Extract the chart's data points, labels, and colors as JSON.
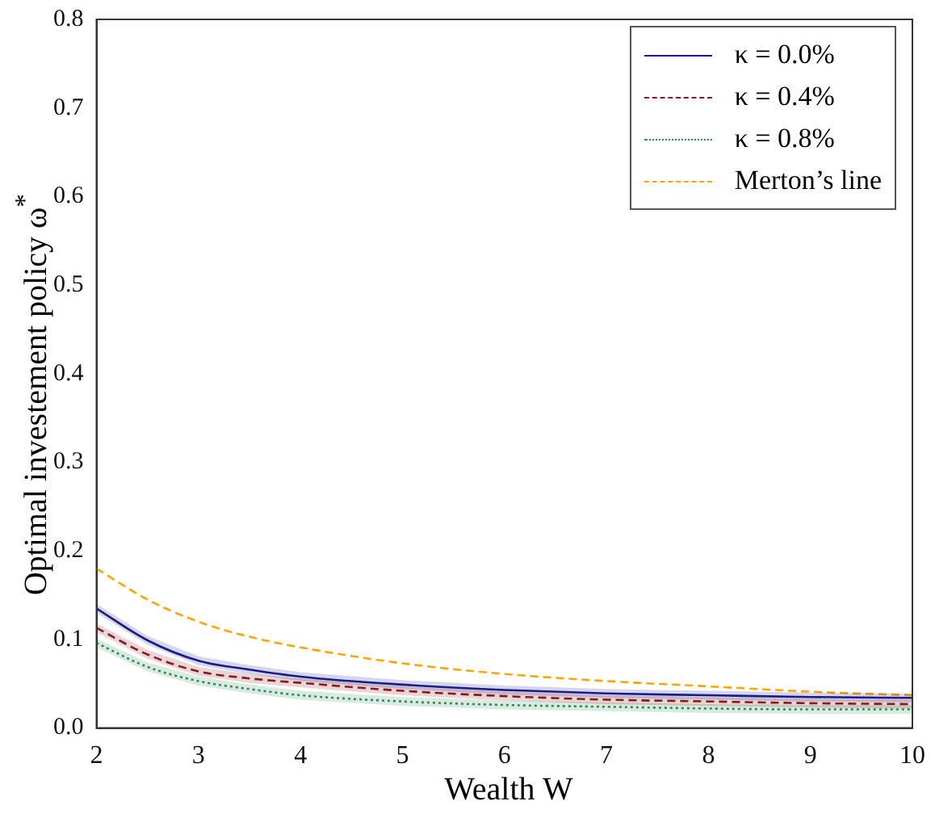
{
  "chart_data": {
    "type": "line",
    "xlabel": "Wealth W",
    "ylabel": "Optimal investement policy ω$^{*}$",
    "x": [
      2,
      2.5,
      3,
      3.5,
      4,
      5,
      6,
      7,
      8,
      9,
      10
    ],
    "series": [
      {
        "name": "κ = 0.0%",
        "color": "#1a1a8c",
        "line_style": "solid",
        "values": [
          0.135,
          0.099,
          0.076,
          0.066,
          0.058,
          0.049,
          0.043,
          0.039,
          0.037,
          0.035,
          0.034
        ],
        "lower": [
          0.13,
          0.094,
          0.071,
          0.061,
          0.053,
          0.044,
          0.038,
          0.034,
          0.032,
          0.03,
          0.029
        ],
        "upper": [
          0.14,
          0.104,
          0.081,
          0.071,
          0.063,
          0.054,
          0.048,
          0.044,
          0.042,
          0.04,
          0.039
        ]
      },
      {
        "name": "κ = 0.4%",
        "color": "#8b1a1a",
        "line_style": "dashed",
        "values": [
          0.113,
          0.083,
          0.064,
          0.056,
          0.051,
          0.042,
          0.036,
          0.032,
          0.03,
          0.028,
          0.027
        ],
        "lower": [
          0.108,
          0.078,
          0.059,
          0.051,
          0.046,
          0.037,
          0.031,
          0.027,
          0.025,
          0.023,
          0.022
        ],
        "upper": [
          0.118,
          0.088,
          0.069,
          0.061,
          0.056,
          0.047,
          0.041,
          0.037,
          0.035,
          0.033,
          0.032
        ]
      },
      {
        "name": "κ = 0.8%",
        "color": "#2e8b57",
        "line_style": "dotted",
        "values": [
          0.096,
          0.069,
          0.053,
          0.044,
          0.037,
          0.03,
          0.026,
          0.024,
          0.022,
          0.021,
          0.021
        ],
        "lower": [
          0.091,
          0.064,
          0.048,
          0.039,
          0.032,
          0.025,
          0.021,
          0.019,
          0.017,
          0.016,
          0.016
        ],
        "upper": [
          0.101,
          0.074,
          0.058,
          0.049,
          0.042,
          0.035,
          0.031,
          0.029,
          0.027,
          0.026,
          0.026
        ]
      },
      {
        "name": "Merton’s line",
        "color": "#ffa500",
        "line_style": "dashed",
        "values": [
          0.18,
          0.145,
          0.12,
          0.103,
          0.091,
          0.073,
          0.061,
          0.053,
          0.047,
          0.041,
          0.037
        ]
      }
    ],
    "xlim": [
      2,
      10
    ],
    "xticks": [
      2,
      3,
      4,
      5,
      6,
      7,
      8,
      9,
      10
    ],
    "ylim": [
      0,
      0.8
    ],
    "yticks": [
      {
        "value": 0,
        "label": "0.0"
      },
      0.1,
      0.2,
      0.3,
      0.4,
      0.5,
      0.6,
      0.7,
      0.8
    ],
    "grid": false,
    "legend": "top right",
    "marker": "none"
  }
}
